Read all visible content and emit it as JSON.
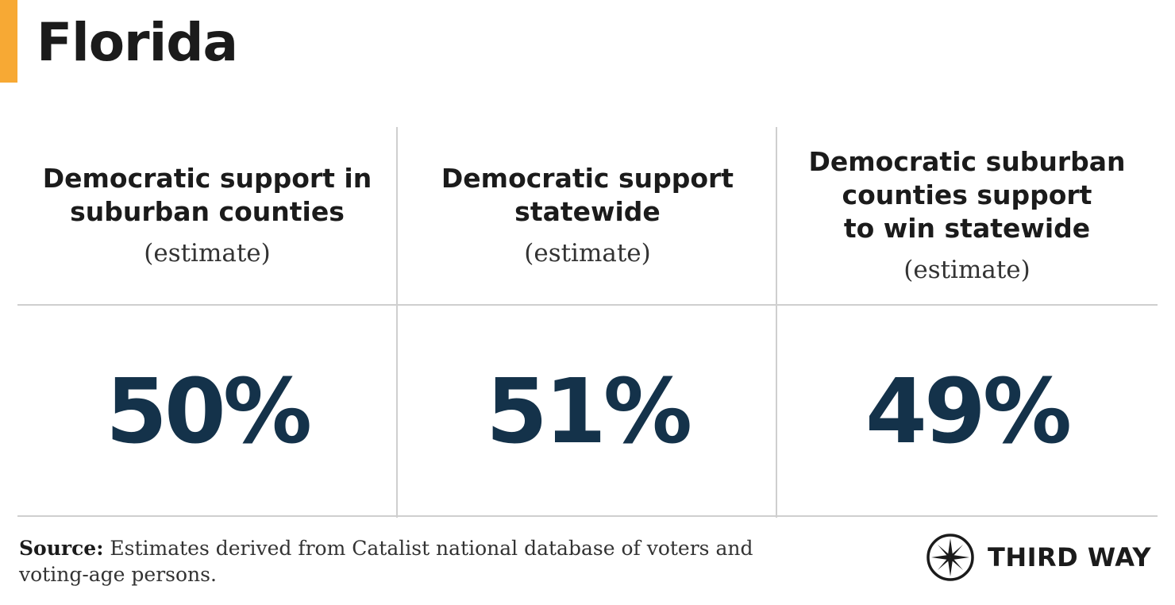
{
  "colors": {
    "accent": "#F7A934",
    "value": "#14324A",
    "divider": "#CFCFCF"
  },
  "title": "Florida",
  "chart_data": {
    "type": "table",
    "columns": [
      {
        "label": "Democratic support in\nsuburban counties",
        "note": "(estimate)",
        "value": 50,
        "value_label": "50%"
      },
      {
        "label": "Democratic support\nstatewide",
        "note": "(estimate)",
        "value": 51,
        "value_label": "51%"
      },
      {
        "label": "Democratic suburban\ncounties support\nto win statewide",
        "note": "(estimate)",
        "value": 49,
        "value_label": "49%"
      }
    ]
  },
  "footer": {
    "source_label": "Source:",
    "source_text": "Estimates derived from Catalist national database of voters and voting-age persons."
  },
  "logo": {
    "text": "THIRD WAY",
    "icon": "compass-star-icon"
  }
}
